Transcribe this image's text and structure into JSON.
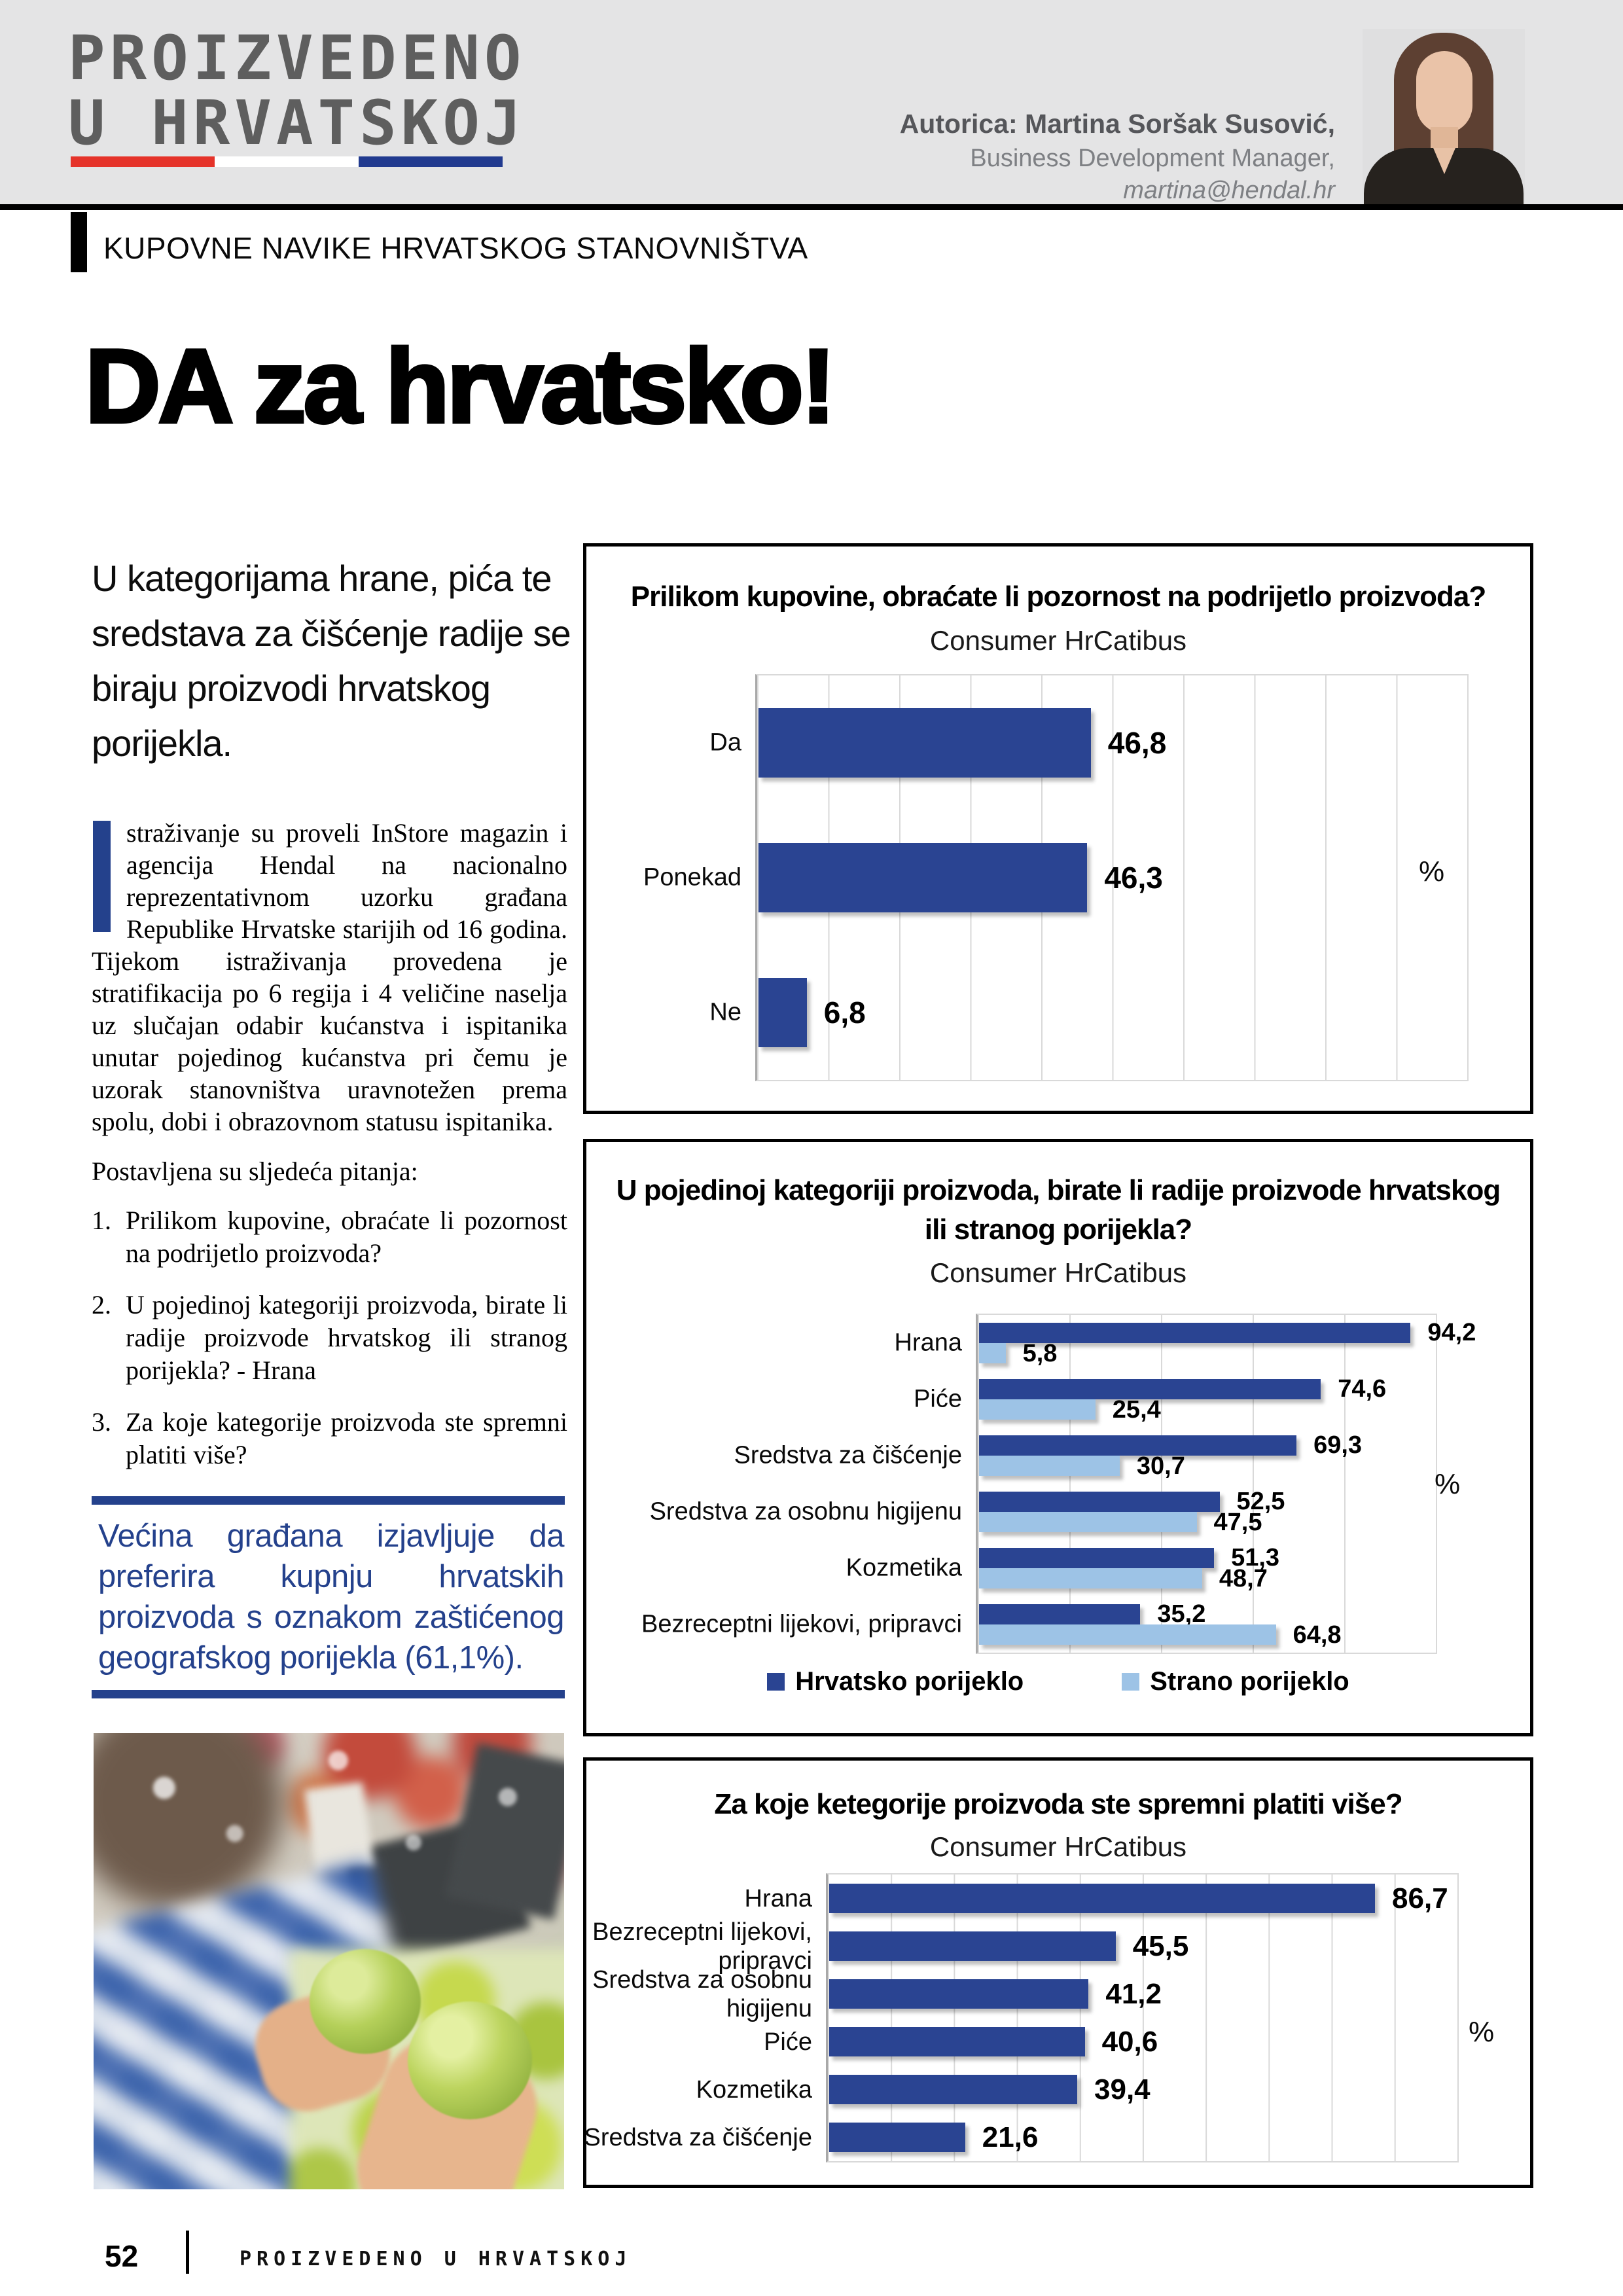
{
  "header": {
    "logo_line1": "PROIZVEDENO",
    "logo_line2": "U HRVATSKOJ",
    "author_name": "Autorica: Martina Soršak Susović,",
    "author_role": "Business Development Manager,",
    "author_email": "martina@hendal.hr"
  },
  "article": {
    "kicker": "KUPOVNE NAVIKE HRVATSKOG STANOVNIŠTVA",
    "title": "DA za hrvatsko!",
    "standfirst": "U kategorijama hrane, pića te sredstava za čišćenje radije se biraju proizvodi hrvatskog porijekla.",
    "dropcap_paragraph": "straživanje su proveli InStore magazin i agencija Hendal na nacionalno reprezentativnom uzorku građana Republike Hrvatske starijih od 16 godina. Tijekom istraživanja provedena je stratifikacija po 6 regija i 4 veličine naselja uz slučajan odabir kućanstva i ispitanika unutar pojedinog kućanstva pri čemu je uzorak stanovništva uravnotežen prema spolu, dobi i obrazovnom statusu ispitanika.",
    "questions_intro": "Postavljena su sljedeća pitanja:",
    "questions": [
      "Prilikom kupovine, obraćate li pozornost na podrijetlo proizvoda?",
      "U pojedinoj kategoriji proizvoda, birate li radije proizvode hrvatskog ili stranog porijekla? - Hrana",
      "Za koje kategorije proizvoda ste spremni platiti više?"
    ],
    "quote": "Većina građana izjavljuje da preferira kupnju hrvatskih proizvoda s oznakom zaštićenog geografskog porijekla (61,1%)."
  },
  "chart_data": [
    {
      "type": "bar",
      "orientation": "horizontal",
      "title": "Prilikom kupovine, obraćate li pozornost na podrijetlo proizvoda?",
      "subtitle": "Consumer HrCatibus",
      "categories": [
        "Da",
        "Ponekad",
        "Ne"
      ],
      "values": [
        46.8,
        46.3,
        6.8
      ],
      "color": "#2a4492",
      "unit": "%",
      "xlim": [
        0,
        100
      ],
      "gridline_step": 10,
      "grid": true,
      "legend_position": "none"
    },
    {
      "type": "bar",
      "orientation": "horizontal",
      "title": "U pojedinoj kategoriji proizvoda, birate li radije proizvode hrvatskog\nili stranog porijekla?",
      "subtitle": "Consumer HrCatibus",
      "categories": [
        "Hrana",
        "Piće",
        "Sredstva za čišćenje",
        "Sredstva za osobnu higijenu",
        "Kozmetika",
        "Bezreceptni lijekovi, pripravci"
      ],
      "series": [
        {
          "name": "Hrvatsko porijeklo",
          "color": "#2a4492",
          "values": [
            94.2,
            74.6,
            69.3,
            52.5,
            51.3,
            35.2
          ]
        },
        {
          "name": "Strano porijeklo",
          "color": "#9dc3e6",
          "values": [
            5.8,
            25.4,
            30.7,
            47.5,
            48.7,
            64.8
          ]
        }
      ],
      "unit": "%",
      "xlim": [
        0,
        100
      ],
      "gridline_step": 20,
      "grid": true,
      "legend_position": "bottom"
    },
    {
      "type": "bar",
      "orientation": "horizontal",
      "title": "Za koje ketegorije proizvoda ste spremni platiti više?",
      "subtitle": "Consumer HrCatibus",
      "categories": [
        "Hrana",
        "Bezreceptni lijekovi, pripravci",
        "Sredstva za osobnu higijenu",
        "Piće",
        "Kozmetika",
        "Sredstva za čišćenje"
      ],
      "values": [
        86.7,
        45.5,
        41.2,
        40.6,
        39.4,
        21.6
      ],
      "color": "#2a4492",
      "unit": "%",
      "xlim": [
        0,
        100
      ],
      "gridline_step": 10,
      "grid": true,
      "legend_position": "none"
    }
  ],
  "footer": {
    "page_number": "52",
    "magazine_title": "PROIZVEDENO U HRVATSKOJ"
  },
  "colors": {
    "bar_dark_blue": "#2a4492",
    "bar_light_blue": "#9dc3e6",
    "accent_blue": "#24418c",
    "flag_red": "#e5332a",
    "flag_blue": "#213a8f",
    "header_gray": "#e4e4e5",
    "logo_gray": "#5e5e5e"
  }
}
